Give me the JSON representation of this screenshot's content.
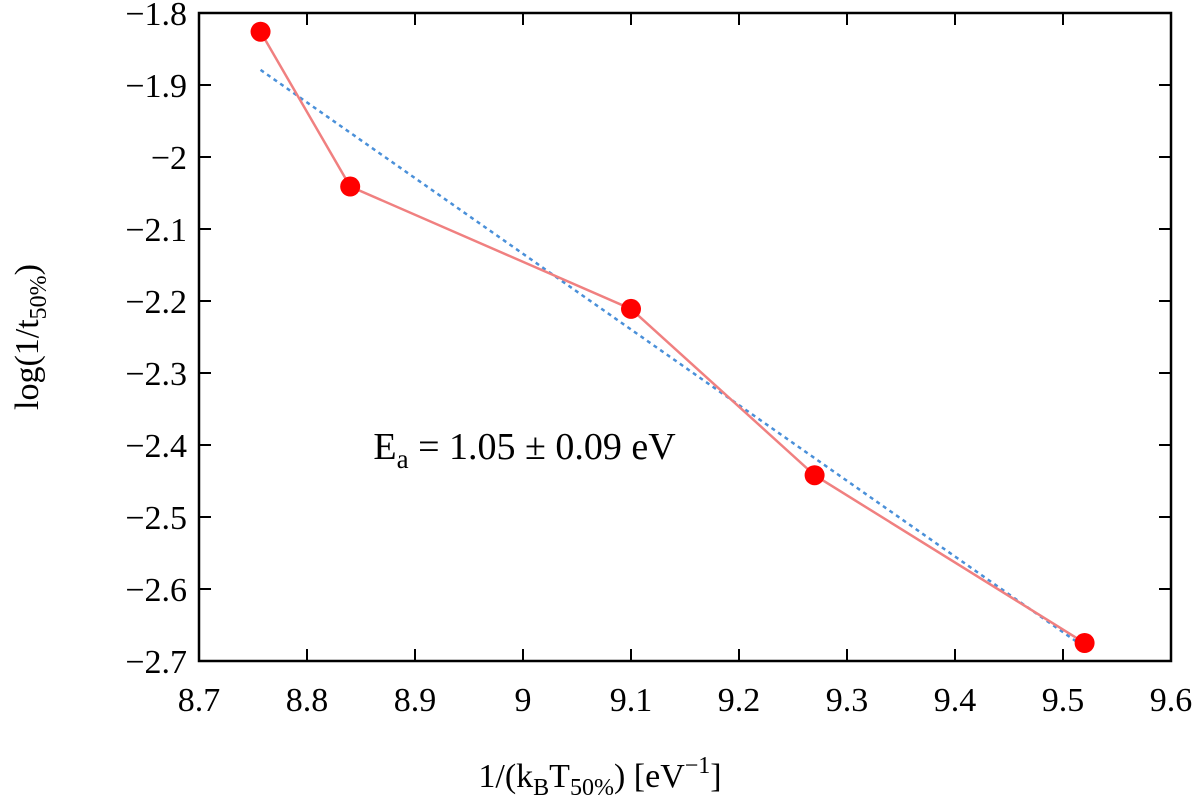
{
  "chart_data": {
    "type": "line",
    "title": "",
    "xlabel": "1/(kBT50%) [eV-1]",
    "ylabel": "log(1/t50%)",
    "xlim": [
      8.7,
      9.6
    ],
    "ylim": [
      -2.7,
      -1.8
    ],
    "grid": false,
    "x_ticks": [
      "8.7",
      "8.8",
      "8.9",
      "9",
      "9.1",
      "9.2",
      "9.3",
      "9.4",
      "9.5",
      "9.6"
    ],
    "y_ticks": [
      "−1.8",
      "−1.9",
      "−2",
      "−2.1",
      "−2.2",
      "−2.3",
      "−2.4",
      "−2.5",
      "−2.6",
      "−2.7"
    ],
    "series": [
      {
        "kind": "data",
        "color": "#f08080",
        "marker_color": "#ff0000",
        "x": [
          8.757,
          8.84,
          9.1,
          9.27,
          9.52
        ],
        "y": [
          -1.826,
          -2.041,
          -2.211,
          -2.442,
          -2.675
        ]
      },
      {
        "kind": "fit",
        "style": "dotted",
        "color": "#4a90d9",
        "x": [
          8.757,
          9.52
        ],
        "y": [
          -1.879,
          -2.681
        ]
      }
    ],
    "annotation": {
      "prefix": "E",
      "sub": "a",
      "text": " = 1.05 ± 0.09 eV",
      "x": 8.88,
      "y": -2.4
    }
  }
}
